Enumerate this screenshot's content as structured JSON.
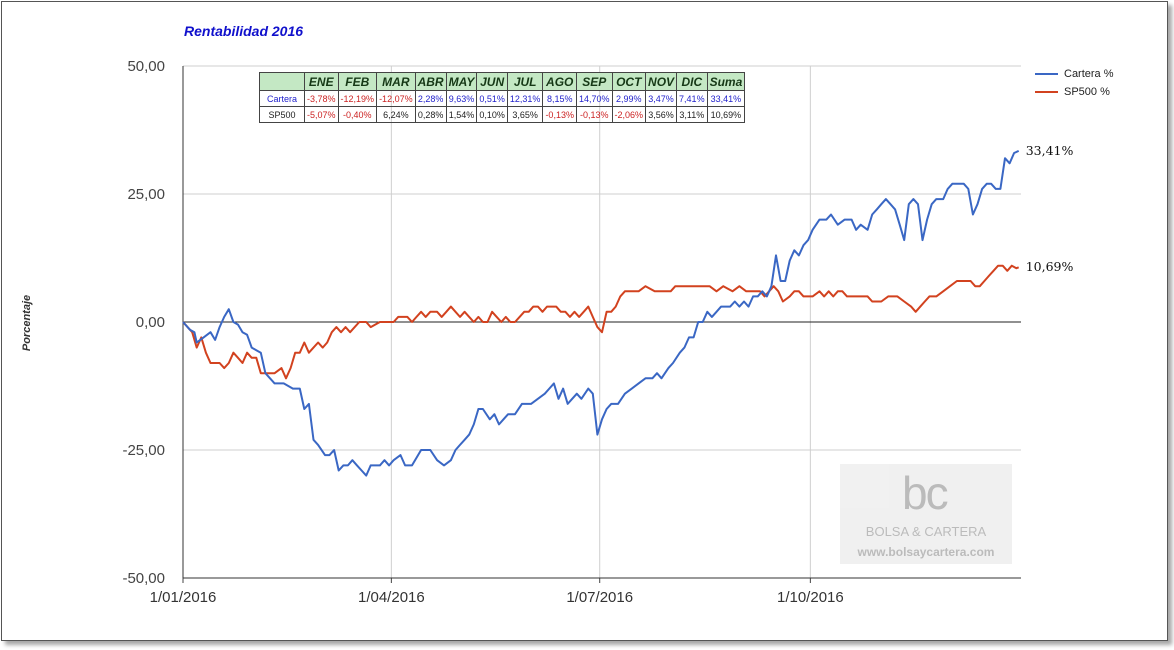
{
  "chart_data": {
    "type": "line",
    "title": "Rentabilidad 2016",
    "ylabel": "Porcentaje",
    "ylim": [
      -50,
      50
    ],
    "yticks": [
      "50,00",
      "25,00",
      "0,00",
      "-25,00",
      "-50,00"
    ],
    "xticks": [
      "1/01/2016",
      "1/04/2016",
      "1/07/2016",
      "1/10/2016"
    ],
    "xlim": [
      0,
      366
    ],
    "grid": true,
    "legend_position": "top-right",
    "series": [
      {
        "name": "Cartera %",
        "color": "#3a67c4",
        "end_label": "33,41%",
        "points": [
          [
            0,
            0
          ],
          [
            3,
            -1.5
          ],
          [
            5,
            -2
          ],
          [
            6,
            -4
          ],
          [
            9,
            -3
          ],
          [
            12,
            -2
          ],
          [
            14,
            -3.5
          ],
          [
            16,
            -1
          ],
          [
            18,
            1
          ],
          [
            20,
            2.5
          ],
          [
            22,
            0
          ],
          [
            24,
            -0.5
          ],
          [
            26,
            -2
          ],
          [
            28,
            -2.5
          ],
          [
            30,
            -5
          ],
          [
            32,
            -5.5
          ],
          [
            34,
            -6
          ],
          [
            36,
            -10
          ],
          [
            38,
            -11
          ],
          [
            40,
            -12
          ],
          [
            44,
            -12
          ],
          [
            48,
            -13
          ],
          [
            51,
            -13
          ],
          [
            53,
            -17
          ],
          [
            55,
            -16
          ],
          [
            57,
            -23
          ],
          [
            59,
            -24
          ],
          [
            62,
            -26
          ],
          [
            64,
            -26
          ],
          [
            66,
            -25
          ],
          [
            68,
            -29
          ],
          [
            70,
            -28
          ],
          [
            72,
            -28
          ],
          [
            74,
            -27
          ],
          [
            76,
            -28
          ],
          [
            78,
            -29
          ],
          [
            80,
            -30
          ],
          [
            82,
            -28
          ],
          [
            86,
            -28
          ],
          [
            88,
            -27
          ],
          [
            90,
            -28
          ],
          [
            92,
            -27
          ],
          [
            95,
            -26
          ],
          [
            97,
            -28
          ],
          [
            100,
            -28
          ],
          [
            104,
            -25
          ],
          [
            108,
            -25
          ],
          [
            111,
            -27
          ],
          [
            114,
            -28
          ],
          [
            117,
            -27
          ],
          [
            119,
            -25
          ],
          [
            121,
            -24
          ],
          [
            123,
            -23
          ],
          [
            125,
            -22
          ],
          [
            127,
            -20
          ],
          [
            129,
            -17
          ],
          [
            131,
            -17
          ],
          [
            134,
            -19
          ],
          [
            136,
            -18
          ],
          [
            138,
            -20
          ],
          [
            140,
            -19
          ],
          [
            142,
            -18
          ],
          [
            145,
            -18
          ],
          [
            148,
            -16
          ],
          [
            152,
            -16
          ],
          [
            155,
            -15
          ],
          [
            158,
            -14
          ],
          [
            160,
            -13
          ],
          [
            162,
            -12
          ],
          [
            164,
            -15
          ],
          [
            166,
            -13
          ],
          [
            168,
            -16
          ],
          [
            170,
            -15
          ],
          [
            172,
            -14
          ],
          [
            174,
            -15
          ],
          [
            177,
            -13
          ],
          [
            179,
            -14
          ],
          [
            181,
            -22
          ],
          [
            183,
            -19
          ],
          [
            185,
            -17
          ],
          [
            187,
            -16
          ],
          [
            190,
            -16
          ],
          [
            193,
            -14
          ],
          [
            196,
            -13
          ],
          [
            199,
            -12
          ],
          [
            202,
            -11
          ],
          [
            205,
            -11
          ],
          [
            207,
            -10
          ],
          [
            209,
            -11
          ],
          [
            212,
            -9
          ],
          [
            214,
            -8
          ],
          [
            217,
            -6
          ],
          [
            219,
            -5
          ],
          [
            221,
            -3
          ],
          [
            223,
            -3
          ],
          [
            225,
            0
          ],
          [
            227,
            0
          ],
          [
            229,
            2
          ],
          [
            231,
            1
          ],
          [
            233,
            2
          ],
          [
            235,
            3
          ],
          [
            237,
            3
          ],
          [
            239,
            3
          ],
          [
            241,
            4
          ],
          [
            243,
            3
          ],
          [
            245,
            4
          ],
          [
            247,
            3
          ],
          [
            249,
            5
          ],
          [
            251,
            5
          ],
          [
            253,
            6
          ],
          [
            255,
            5
          ],
          [
            257,
            7
          ],
          [
            259,
            13
          ],
          [
            261,
            8
          ],
          [
            263,
            8
          ],
          [
            265,
            12
          ],
          [
            267,
            14
          ],
          [
            269,
            13
          ],
          [
            271,
            15
          ],
          [
            273,
            16
          ],
          [
            275,
            18
          ],
          [
            278,
            20
          ],
          [
            281,
            20
          ],
          [
            283,
            21
          ],
          [
            286,
            19
          ],
          [
            289,
            20
          ],
          [
            292,
            20
          ],
          [
            294,
            18
          ],
          [
            296,
            19
          ],
          [
            299,
            18
          ],
          [
            301,
            21
          ],
          [
            303,
            22
          ],
          [
            305,
            23
          ],
          [
            307,
            24
          ],
          [
            309,
            23
          ],
          [
            311,
            22
          ],
          [
            313,
            19
          ],
          [
            315,
            16
          ],
          [
            317,
            23
          ],
          [
            319,
            24
          ],
          [
            321,
            23
          ],
          [
            323,
            16
          ],
          [
            325,
            20
          ],
          [
            327,
            23
          ],
          [
            329,
            24
          ],
          [
            332,
            24
          ],
          [
            334,
            26
          ],
          [
            336,
            27
          ],
          [
            338,
            27
          ],
          [
            341,
            27
          ],
          [
            343,
            26
          ],
          [
            345,
            21
          ],
          [
            347,
            23
          ],
          [
            349,
            26
          ],
          [
            351,
            27
          ],
          [
            353,
            27
          ],
          [
            355,
            26
          ],
          [
            357,
            26
          ],
          [
            359,
            32
          ],
          [
            361,
            31
          ],
          [
            363,
            33
          ],
          [
            365,
            33.41
          ]
        ]
      },
      {
        "name": "SP500 %",
        "color": "#d2421f",
        "end_label": "10,69%",
        "points": [
          [
            0,
            0
          ],
          [
            4,
            -2
          ],
          [
            6,
            -5
          ],
          [
            8,
            -3
          ],
          [
            10,
            -6
          ],
          [
            12,
            -8
          ],
          [
            16,
            -8
          ],
          [
            18,
            -9
          ],
          [
            20,
            -8
          ],
          [
            22,
            -6
          ],
          [
            24,
            -7
          ],
          [
            26,
            -8
          ],
          [
            28,
            -6
          ],
          [
            30,
            -7
          ],
          [
            32,
            -7
          ],
          [
            34,
            -10
          ],
          [
            37,
            -10
          ],
          [
            40,
            -10
          ],
          [
            43,
            -9
          ],
          [
            45,
            -11
          ],
          [
            47,
            -9
          ],
          [
            49,
            -6
          ],
          [
            51,
            -6
          ],
          [
            53,
            -4
          ],
          [
            55,
            -6
          ],
          [
            57,
            -5
          ],
          [
            59,
            -4
          ],
          [
            61,
            -5
          ],
          [
            63,
            -4
          ],
          [
            65,
            -2
          ],
          [
            67,
            -1
          ],
          [
            69,
            -2
          ],
          [
            71,
            -1
          ],
          [
            73,
            -2
          ],
          [
            75,
            -1
          ],
          [
            77,
            0
          ],
          [
            80,
            0
          ],
          [
            82,
            -1
          ],
          [
            86,
            0
          ],
          [
            90,
            0
          ],
          [
            92,
            0
          ],
          [
            94,
            1
          ],
          [
            96,
            1
          ],
          [
            98,
            1
          ],
          [
            100,
            0
          ],
          [
            102,
            1
          ],
          [
            104,
            2
          ],
          [
            106,
            1
          ],
          [
            108,
            2
          ],
          [
            111,
            2
          ],
          [
            113,
            1
          ],
          [
            115,
            2
          ],
          [
            117,
            3
          ],
          [
            119,
            2
          ],
          [
            121,
            1
          ],
          [
            123,
            2
          ],
          [
            125,
            1
          ],
          [
            127,
            0
          ],
          [
            129,
            1
          ],
          [
            131,
            0
          ],
          [
            133,
            0
          ],
          [
            135,
            2
          ],
          [
            137,
            1
          ],
          [
            139,
            0
          ],
          [
            141,
            1
          ],
          [
            143,
            0
          ],
          [
            145,
            0
          ],
          [
            147,
            1
          ],
          [
            149,
            2
          ],
          [
            151,
            2
          ],
          [
            153,
            3
          ],
          [
            155,
            3
          ],
          [
            157,
            2
          ],
          [
            159,
            3
          ],
          [
            161,
            3
          ],
          [
            163,
            3
          ],
          [
            165,
            2
          ],
          [
            167,
            2
          ],
          [
            169,
            1
          ],
          [
            171,
            2
          ],
          [
            173,
            1
          ],
          [
            175,
            2
          ],
          [
            177,
            3
          ],
          [
            179,
            1
          ],
          [
            181,
            -1
          ],
          [
            183,
            -2
          ],
          [
            185,
            2
          ],
          [
            187,
            2
          ],
          [
            189,
            3
          ],
          [
            191,
            5
          ],
          [
            193,
            6
          ],
          [
            196,
            6
          ],
          [
            199,
            6
          ],
          [
            202,
            7
          ],
          [
            206,
            6
          ],
          [
            210,
            6
          ],
          [
            213,
            6
          ],
          [
            215,
            7
          ],
          [
            218,
            7
          ],
          [
            221,
            7
          ],
          [
            224,
            7
          ],
          [
            227,
            7
          ],
          [
            230,
            7
          ],
          [
            233,
            6
          ],
          [
            236,
            7
          ],
          [
            240,
            6
          ],
          [
            243,
            7
          ],
          [
            246,
            6
          ],
          [
            249,
            6
          ],
          [
            252,
            6
          ],
          [
            254,
            5
          ],
          [
            256,
            6
          ],
          [
            258,
            7
          ],
          [
            260,
            6
          ],
          [
            262,
            4
          ],
          [
            265,
            5
          ],
          [
            267,
            6
          ],
          [
            269,
            6
          ],
          [
            271,
            5
          ],
          [
            273,
            5
          ],
          [
            275,
            5
          ],
          [
            278,
            6
          ],
          [
            280,
            5
          ],
          [
            282,
            6
          ],
          [
            284,
            5
          ],
          [
            286,
            6
          ],
          [
            288,
            6
          ],
          [
            290,
            5
          ],
          [
            293,
            5
          ],
          [
            296,
            5
          ],
          [
            299,
            5
          ],
          [
            301,
            4
          ],
          [
            303,
            4
          ],
          [
            305,
            4
          ],
          [
            308,
            5
          ],
          [
            312,
            5
          ],
          [
            315,
            4
          ],
          [
            318,
            3
          ],
          [
            320,
            2
          ],
          [
            322,
            3
          ],
          [
            324,
            4
          ],
          [
            326,
            5
          ],
          [
            329,
            5
          ],
          [
            332,
            6
          ],
          [
            335,
            7
          ],
          [
            338,
            8
          ],
          [
            341,
            8
          ],
          [
            344,
            8
          ],
          [
            346,
            7
          ],
          [
            348,
            7
          ],
          [
            350,
            8
          ],
          [
            352,
            9
          ],
          [
            354,
            10
          ],
          [
            356,
            11
          ],
          [
            358,
            11
          ],
          [
            360,
            10
          ],
          [
            362,
            11
          ],
          [
            364,
            10.5
          ],
          [
            365,
            10.69
          ]
        ]
      }
    ],
    "table": {
      "headers": [
        "",
        "ENE",
        "FEB",
        "MAR",
        "ABR",
        "MAY",
        "JUN",
        "JUL",
        "AGO",
        "SEP",
        "OCT",
        "NOV",
        "DIC",
        "Suma"
      ],
      "rows": [
        {
          "name": "Cartera",
          "cells": [
            "-3,78%",
            "-12,19%",
            "-12,07%",
            "2,28%",
            "9,63%",
            "0,51%",
            "12,31%",
            "8,15%",
            "14,70%",
            "2,99%",
            "3,47%",
            "7,41%",
            "33,41%"
          ]
        },
        {
          "name": "SP500",
          "cells": [
            "-5,07%",
            "-0,40%",
            "6,24%",
            "0,28%",
            "1,54%",
            "0,10%",
            "3,65%",
            "-0,13%",
            "-0,13%",
            "-2,06%",
            "3,56%",
            "3,11%",
            "10,69%"
          ]
        }
      ]
    }
  },
  "watermark": {
    "logo": "bc",
    "name": "BOLSA & CARTERA",
    "url": "www.bolsaycartera.com"
  }
}
